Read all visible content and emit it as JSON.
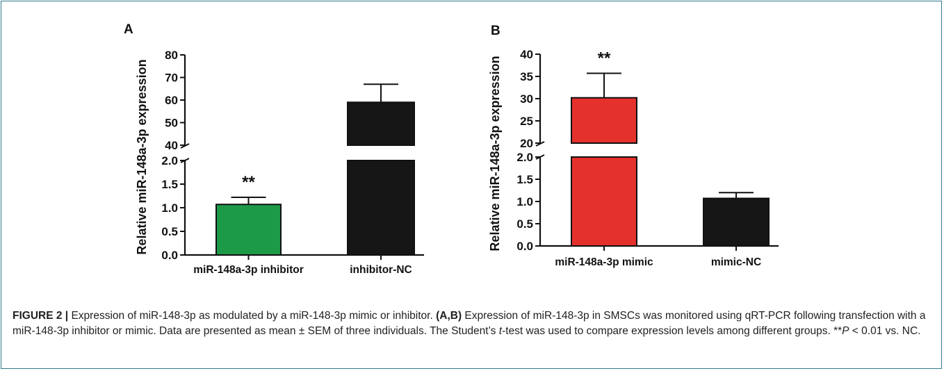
{
  "chart_data": [
    {
      "type": "bar",
      "panel_label": "A",
      "ylabel": "Relative miR-148a-3p expression",
      "categories": [
        "miR-148a-3p inhibitor",
        "inhibitor-NC"
      ],
      "values": [
        1.07,
        59
      ],
      "errors": [
        0.15,
        8
      ],
      "colors": [
        "#1d9a48",
        "#161616"
      ],
      "significance": [
        "**",
        ""
      ],
      "y_axis_break": true,
      "lower_ylim": [
        0,
        2.0
      ],
      "lower_ticks": [
        "0.0",
        "0.5",
        "1.0",
        "1.5",
        "2.0"
      ],
      "upper_ylim": [
        40,
        80
      ],
      "upper_ticks": [
        "40",
        "50",
        "60",
        "70",
        "80"
      ]
    },
    {
      "type": "bar",
      "panel_label": "B",
      "ylabel": "Relative miR-148a-3p expression",
      "categories": [
        "miR-148a-3p mimic",
        "mimic-NC"
      ],
      "values": [
        30.2,
        1.07
      ],
      "errors": [
        5.5,
        0.13
      ],
      "colors": [
        "#e4312b",
        "#161616"
      ],
      "significance": [
        "**",
        ""
      ],
      "y_axis_break": true,
      "lower_ylim": [
        0,
        2.0
      ],
      "lower_ticks": [
        "0.0",
        "0.5",
        "1.0",
        "1.5",
        "2.0"
      ],
      "upper_ylim": [
        20,
        40
      ],
      "upper_ticks": [
        "20",
        "25",
        "30",
        "35",
        "40"
      ]
    }
  ],
  "caption": {
    "label": "FIGURE 2 |",
    "text1": " Expression of miR-148-3p as modulated by a miR-148-3p mimic or inhibitor. ",
    "panels": "(A,B)",
    "text2": " Expression of miR-148-3p in SMSCs was monitored using qRT-PCR following transfection with a miR-148-3p inhibitor or mimic. Data are presented as mean ± SEM of three individuals. The Student’s ",
    "t": "t",
    "text3": "-test was used to compare expression levels among different groups. **",
    "p": "P",
    "text4": " < 0.01 vs. NC."
  }
}
